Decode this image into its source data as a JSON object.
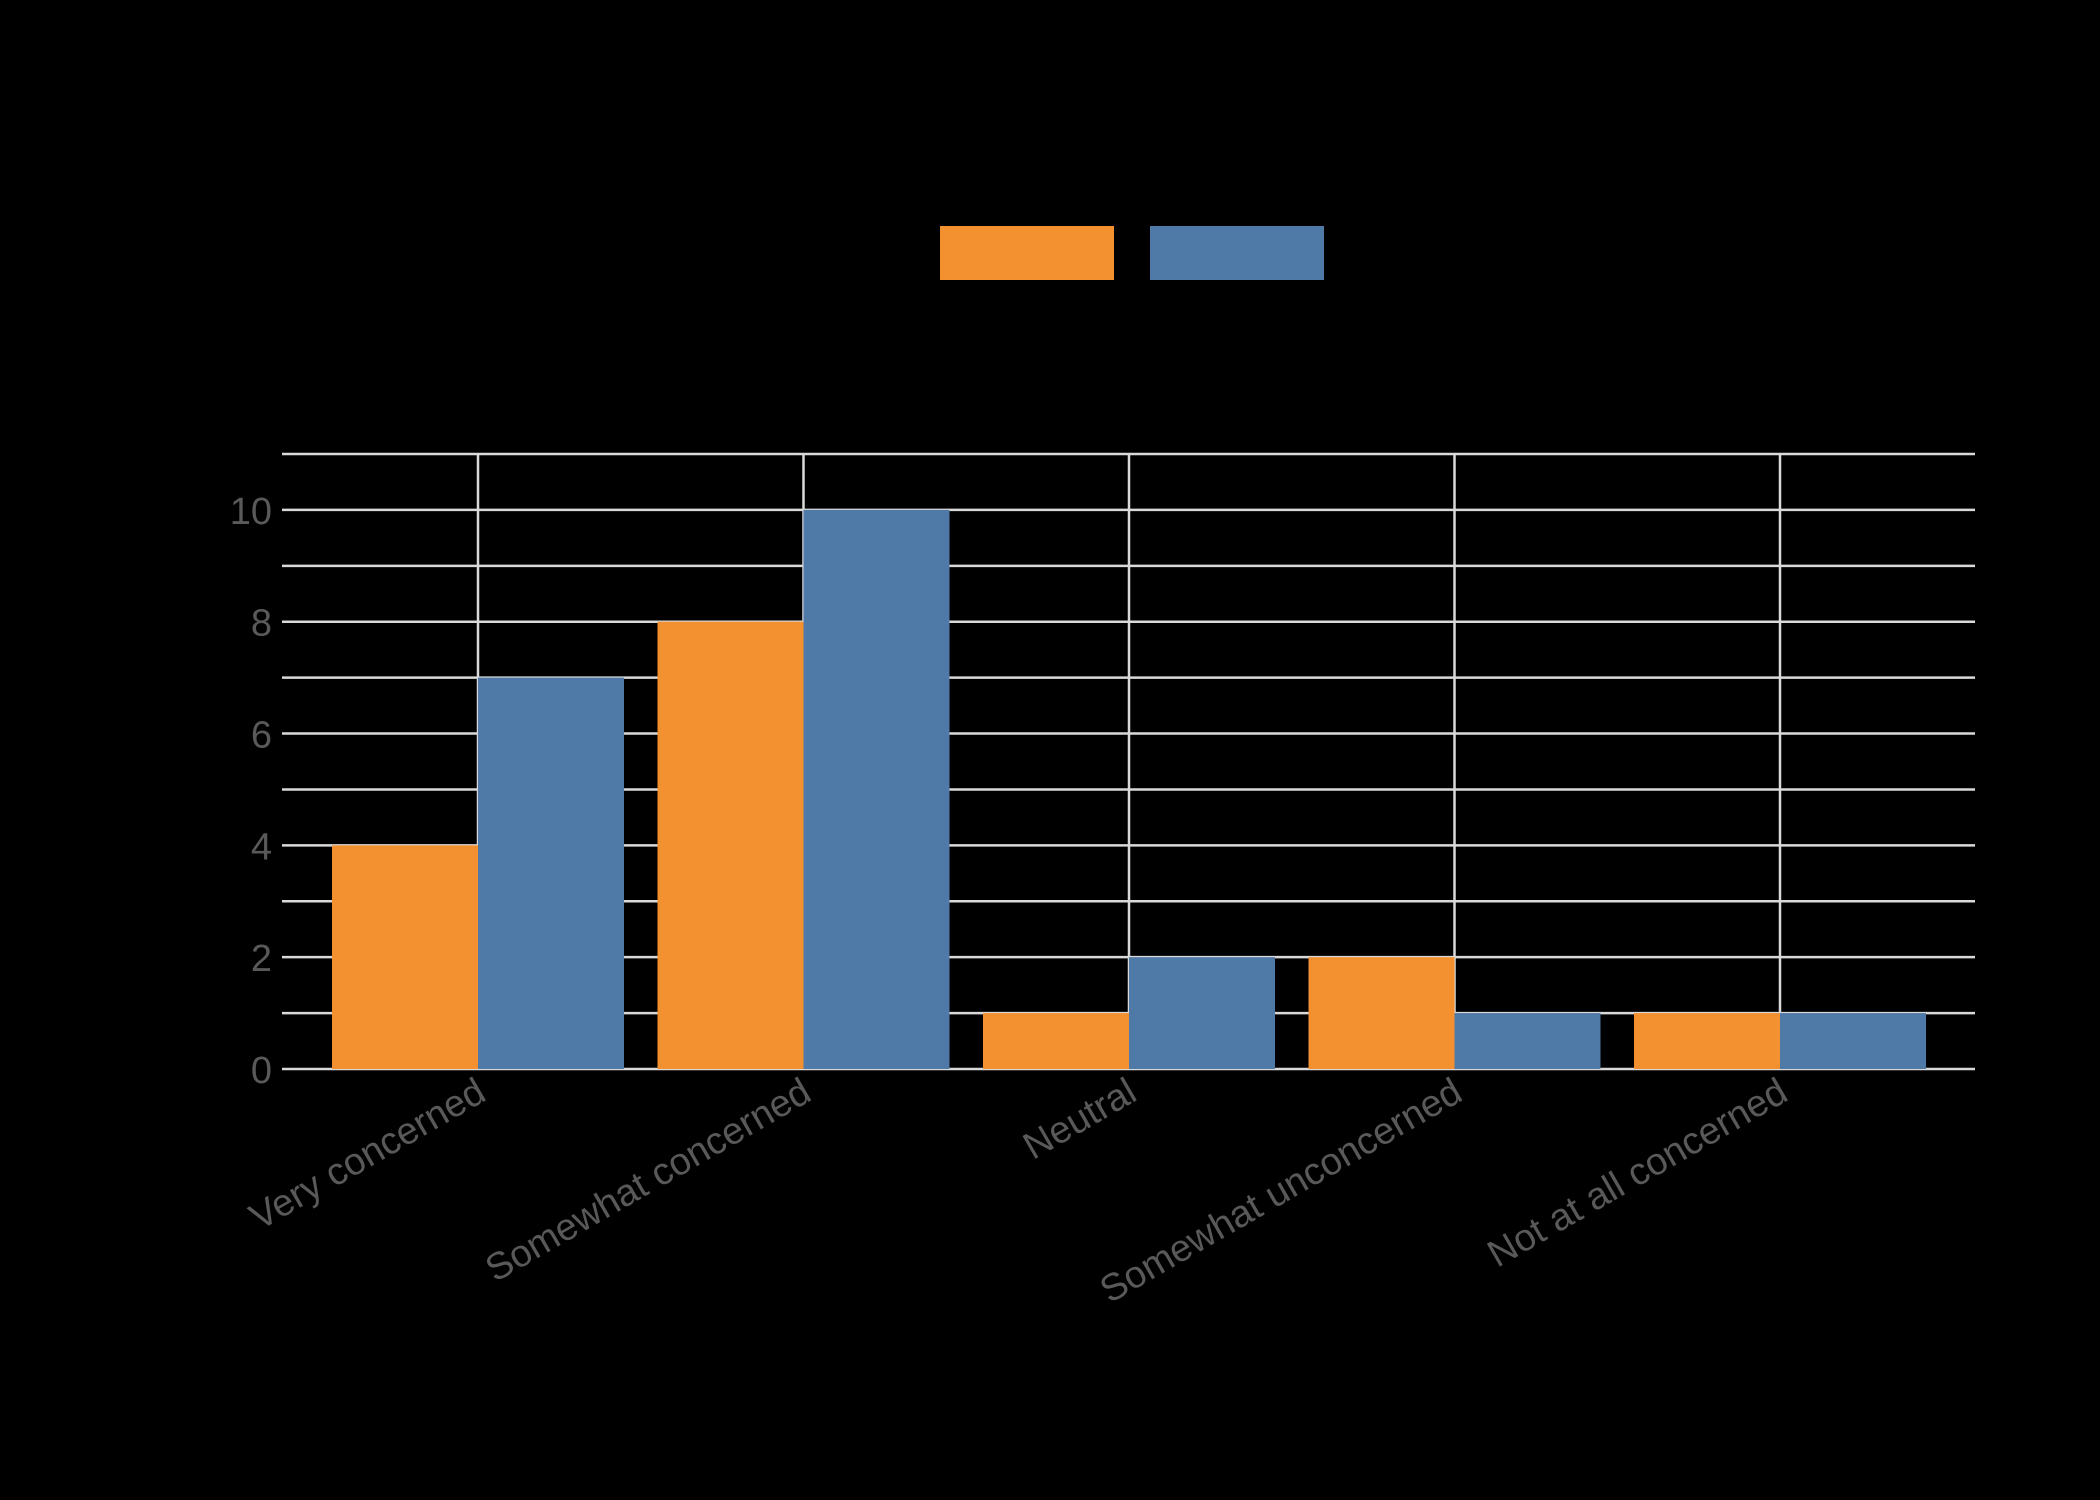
{
  "chart_data": {
    "type": "bar",
    "title": "",
    "xlabel": "",
    "ylabel": "",
    "categories": [
      "Very concerned",
      "Somewhat concerned",
      "Neutral",
      "Somewhat unconcerned",
      "Not at all concerned"
    ],
    "series": [
      {
        "name": "",
        "color": "#F39130",
        "values": [
          4,
          8,
          1,
          2,
          1
        ]
      },
      {
        "name": "",
        "color": "#4F79A7",
        "values": [
          7,
          10,
          2,
          1,
          1
        ]
      }
    ],
    "ylim": [
      0,
      11
    ],
    "yticks": [
      0,
      2,
      4,
      6,
      8,
      10
    ],
    "minor_gridlines_every": 1,
    "grid": true,
    "legend_position": "top-center",
    "x_label_rotation": -30
  },
  "style": {
    "background": "#000000",
    "grid_color": "#D9D9D9",
    "tick_label_color": "#595959"
  }
}
